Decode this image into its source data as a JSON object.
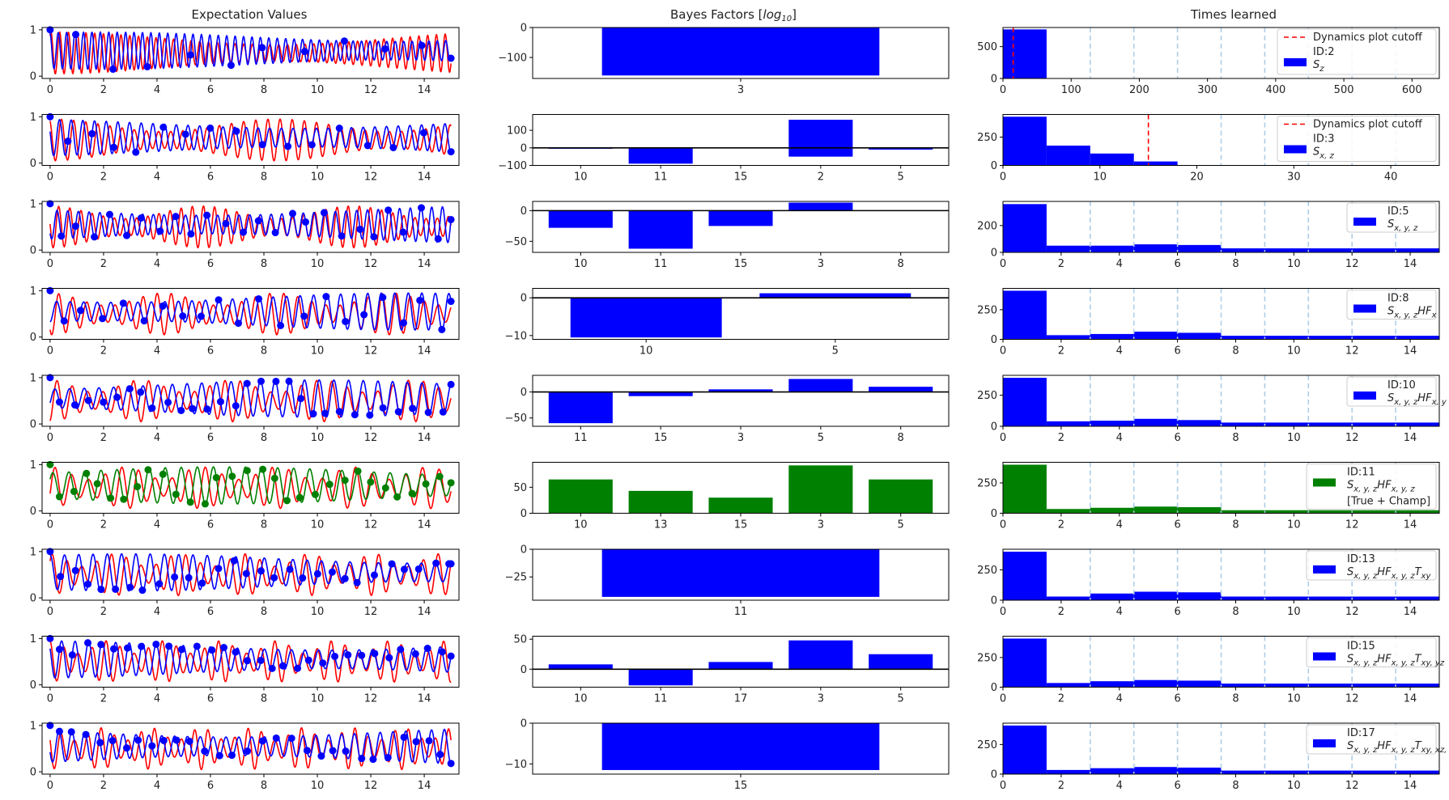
{
  "colors": {
    "sim": "#ff0000",
    "model": "#0000ff",
    "champ": "#008000",
    "cutoff": "#ff0000",
    "epoch": "#aecde8",
    "axis": "#000000"
  },
  "columns": {
    "expectation": {
      "title": "Expectation Values"
    },
    "bayes": {
      "title": "Bayes Factors [",
      "title_math": "log",
      "title_sub": "10",
      "title_end": "]"
    },
    "times": {
      "title": "Times learned"
    }
  },
  "chart_data": [
    {
      "row": 0,
      "model_id": "2",
      "model_label": "S",
      "model_sub": "z",
      "champion": false,
      "cutoff": 15,
      "expectation": {
        "type": "line",
        "xlim": [
          -0.3,
          15.3
        ],
        "ylim": [
          -0.05,
          1.05
        ],
        "xticks": [
          0,
          2,
          4,
          6,
          8,
          10,
          12,
          14
        ],
        "yticks": [
          0,
          1
        ],
        "freq": 3.05,
        "marker_step": 1.37,
        "seed": 1
      },
      "bayes": {
        "type": "bar",
        "categories": [
          "3"
        ],
        "values": [
          -160
        ],
        "ylim": [
          -170,
          0
        ],
        "yticks": [
          -100,
          0
        ],
        "yticklabels": [
          "−100",
          "0"
        ],
        "zero_line": false
      },
      "times": {
        "type": "bar",
        "bin_edges": [
          0,
          64
        ],
        "counts": [
          770
        ],
        "ylim": [
          0,
          800
        ],
        "xlim": [
          0,
          640
        ],
        "xticks": [
          0,
          100,
          200,
          300,
          400,
          500,
          600
        ],
        "yticks": [
          0,
          500
        ],
        "epoch_lines": [
          128,
          192,
          256,
          320,
          384,
          448,
          512,
          576
        ],
        "legend": {
          "cutoff": "Dynamics plot cutoff",
          "id": "ID:2",
          "extra": ""
        }
      }
    },
    {
      "row": 1,
      "model_id": "3",
      "model_label": "S",
      "model_sub": "x, z",
      "champion": false,
      "cutoff": 15,
      "expectation": {
        "type": "line",
        "xlim": [
          -0.3,
          15.3
        ],
        "ylim": [
          -0.05,
          1.05
        ],
        "xticks": [
          0,
          2,
          4,
          6,
          8,
          10,
          12,
          14
        ],
        "yticks": [
          0,
          1
        ],
        "freq": 2.2,
        "marker_step": 0.95,
        "seed": 2
      },
      "bayes": {
        "type": "bar",
        "categories": [
          "10",
          "11",
          "15",
          "2",
          "5"
        ],
        "values": [
          -5,
          -90,
          -3,
          160,
          -10
        ],
        "bar_base": [
          0,
          0,
          0,
          -50,
          0
        ],
        "ylim": [
          -100,
          190
        ],
        "yticks": [
          -100,
          0,
          100
        ],
        "yticklabels": [
          "−100",
          "0",
          "100"
        ],
        "zero_line": true
      },
      "times": {
        "type": "bar",
        "bin_edges": [
          0,
          4.5,
          9,
          13.5,
          18
        ],
        "counts": [
          430,
          175,
          105,
          35
        ],
        "ylim": [
          0,
          450
        ],
        "xlim": [
          0,
          45
        ],
        "xticks": [
          0,
          10,
          20,
          30,
          40
        ],
        "yticks": [
          0,
          250
        ],
        "epoch_lines": [
          22.5,
          27,
          31.5,
          36,
          40.5
        ],
        "legend": {
          "cutoff": "Dynamics plot cutoff",
          "id": "ID:3",
          "extra": ""
        }
      }
    },
    {
      "row": 2,
      "model_id": "5",
      "model_label": "S",
      "model_sub": "x, y, z",
      "champion": false,
      "cutoff": null,
      "expectation": {
        "type": "line",
        "xlim": [
          -0.3,
          15.3
        ],
        "ylim": [
          -0.05,
          1.05
        ],
        "xticks": [
          0,
          2,
          4,
          6,
          8,
          10,
          12,
          14
        ],
        "yticks": [
          0,
          1
        ],
        "freq": 2.4,
        "marker_step": 0.6,
        "seed": 3
      },
      "bayes": {
        "type": "bar",
        "categories": [
          "10",
          "11",
          "15",
          "3",
          "8"
        ],
        "values": [
          -28,
          -62,
          -25,
          13,
          0
        ],
        "ylim": [
          -68,
          15
        ],
        "yticks": [
          -50,
          0
        ],
        "yticklabels": [
          "−50",
          "0"
        ],
        "zero_line": true
      },
      "times": {
        "type": "bar",
        "bin_edges": [
          0,
          1.5,
          3,
          4.5,
          6,
          7.5,
          9,
          10.5,
          12,
          13.5,
          15
        ],
        "counts": [
          360,
          50,
          50,
          60,
          55,
          30,
          30,
          30,
          30,
          30
        ],
        "ylim": [
          0,
          380
        ],
        "xlim": [
          0,
          15
        ],
        "xticks": [
          0,
          2,
          4,
          6,
          8,
          10,
          12,
          14
        ],
        "yticks": [
          0,
          200
        ],
        "epoch_lines": [
          3,
          4.5,
          6,
          7.5,
          9,
          10.5,
          12,
          13.5
        ],
        "legend": {
          "cutoff": "",
          "id": "ID:5",
          "extra": ""
        }
      }
    },
    {
      "row": 3,
      "model_id": "8",
      "model_label": "S",
      "model_sub": "x, y, z",
      "model_tail": "HF",
      "model_tail_sub": "x",
      "champion": false,
      "cutoff": null,
      "expectation": {
        "type": "line",
        "xlim": [
          -0.3,
          15.3
        ],
        "ylim": [
          -0.05,
          1.05
        ],
        "xticks": [
          0,
          2,
          4,
          6,
          8,
          10,
          12,
          14
        ],
        "yticks": [
          0,
          1
        ],
        "freq": 1.9,
        "marker_step": 0.75,
        "seed": 4
      },
      "bayes": {
        "type": "bar",
        "categories": [
          "10",
          "5"
        ],
        "values": [
          -10.5,
          1.2
        ],
        "ylim": [
          -11,
          2.5
        ],
        "yticks": [
          -10,
          0
        ],
        "yticklabels": [
          "−10",
          "0"
        ],
        "zero_line": true
      },
      "times": {
        "type": "bar",
        "bin_edges": [
          0,
          1.5,
          3,
          4.5,
          6,
          7.5,
          9,
          10.5,
          12,
          13.5,
          15
        ],
        "counts": [
          410,
          35,
          45,
          65,
          55,
          30,
          30,
          30,
          30,
          30
        ],
        "ylim": [
          0,
          430
        ],
        "xlim": [
          0,
          15
        ],
        "xticks": [
          0,
          2,
          4,
          6,
          8,
          10,
          12,
          14
        ],
        "yticks": [
          0,
          250
        ],
        "epoch_lines": [
          3,
          4.5,
          6,
          7.5,
          9,
          10.5,
          12,
          13.5
        ],
        "legend": {
          "cutoff": "",
          "id": "ID:8",
          "extra": ""
        }
      }
    },
    {
      "row": 4,
      "model_id": "10",
      "model_label": "S",
      "model_sub": "x, y, z",
      "model_tail": "HF",
      "model_tail_sub": "x, y",
      "champion": false,
      "cutoff": null,
      "expectation": {
        "type": "line",
        "xlim": [
          -0.3,
          15.3
        ],
        "ylim": [
          -0.05,
          1.05
        ],
        "xticks": [
          0,
          2,
          4,
          6,
          8,
          10,
          12,
          14
        ],
        "yticks": [
          0,
          1
        ],
        "freq": 1.75,
        "marker_step": 0.5,
        "seed": 5
      },
      "bayes": {
        "type": "bar",
        "categories": [
          "11",
          "15",
          "3",
          "5",
          "8"
        ],
        "values": [
          -60,
          -8,
          5,
          25,
          10
        ],
        "ylim": [
          -66,
          32
        ],
        "yticks": [
          -50,
          0
        ],
        "yticklabels": [
          "−50",
          "0"
        ],
        "zero_line": true
      },
      "times": {
        "type": "bar",
        "bin_edges": [
          0,
          1.5,
          3,
          4.5,
          6,
          7.5,
          9,
          10.5,
          12,
          13.5,
          15
        ],
        "counts": [
          390,
          40,
          45,
          60,
          50,
          30,
          30,
          30,
          30,
          30
        ],
        "ylim": [
          0,
          410
        ],
        "xlim": [
          0,
          15
        ],
        "xticks": [
          0,
          2,
          4,
          6,
          8,
          10,
          12,
          14
        ],
        "yticks": [
          0,
          250
        ],
        "epoch_lines": [
          3,
          4.5,
          6,
          7.5,
          9,
          10.5,
          12,
          13.5
        ],
        "legend": {
          "cutoff": "",
          "id": "ID:10",
          "extra": ""
        }
      }
    },
    {
      "row": 5,
      "model_id": "11",
      "model_label": "S",
      "model_sub": "x, y, z",
      "model_tail": "HF",
      "model_tail_sub": "x, y, z",
      "champion": true,
      "cutoff": null,
      "expectation": {
        "type": "line",
        "xlim": [
          -0.3,
          15.3
        ],
        "ylim": [
          -0.05,
          1.05
        ],
        "xticks": [
          0,
          2,
          4,
          6,
          8,
          10,
          12,
          14
        ],
        "yticks": [
          0,
          1
        ],
        "freq": 1.6,
        "marker_step": 0.5,
        "seed": 6
      },
      "bayes": {
        "type": "bar",
        "categories": [
          "10",
          "13",
          "15",
          "3",
          "5"
        ],
        "values": [
          65,
          43,
          30,
          92,
          65
        ],
        "ylim": [
          0,
          98
        ],
        "yticks": [
          0,
          50
        ],
        "yticklabels": [
          "0",
          "50"
        ],
        "zero_line": false
      },
      "times": {
        "type": "bar",
        "bin_edges": [
          0,
          1.5,
          3,
          4.5,
          6,
          7.5,
          9,
          10.5,
          12,
          13.5,
          15
        ],
        "counts": [
          400,
          35,
          45,
          55,
          50,
          25,
          25,
          25,
          25,
          25
        ],
        "ylim": [
          0,
          420
        ],
        "xlim": [
          0,
          15
        ],
        "xticks": [
          0,
          2,
          4,
          6,
          8,
          10,
          12,
          14
        ],
        "yticks": [
          0,
          250
        ],
        "epoch_lines": [
          3,
          4.5,
          6,
          7.5,
          9,
          10.5,
          12,
          13.5
        ],
        "legend": {
          "cutoff": "",
          "id": "ID:11",
          "extra": "[True + Champ]"
        }
      }
    },
    {
      "row": 6,
      "model_id": "13",
      "model_label": "S",
      "model_sub": "x, y, z",
      "model_tail": "HF",
      "model_tail_sub": "x, y, z",
      "model_tail2": "T",
      "model_tail2_sub": "xy",
      "champion": false,
      "cutoff": null,
      "expectation": {
        "type": "line",
        "xlim": [
          -0.3,
          15.3
        ],
        "ylim": [
          -0.05,
          1.05
        ],
        "xticks": [
          0,
          2,
          4,
          6,
          8,
          10,
          12,
          14
        ],
        "yticks": [
          0,
          1
        ],
        "freq": 1.8,
        "marker_step": 0.55,
        "seed": 7
      },
      "bayes": {
        "type": "bar",
        "categories": [
          "11"
        ],
        "values": [
          -43
        ],
        "ylim": [
          -46,
          0
        ],
        "yticks": [
          -25,
          0
        ],
        "yticklabels": [
          "−25",
          "0"
        ],
        "zero_line": false
      },
      "times": {
        "type": "bar",
        "bin_edges": [
          0,
          1.5,
          3,
          4.5,
          6,
          7.5,
          9,
          10.5,
          12,
          13.5,
          15
        ],
        "counts": [
          400,
          30,
          55,
          70,
          65,
          30,
          30,
          30,
          30,
          30
        ],
        "ylim": [
          0,
          420
        ],
        "xlim": [
          0,
          15
        ],
        "xticks": [
          0,
          2,
          4,
          6,
          8,
          10,
          12,
          14
        ],
        "yticks": [
          0,
          250
        ],
        "epoch_lines": [
          3,
          4.5,
          6,
          7.5,
          9,
          10.5,
          12,
          13.5
        ],
        "legend": {
          "cutoff": "",
          "id": "ID:13",
          "extra": ""
        }
      }
    },
    {
      "row": 7,
      "model_id": "15",
      "model_label": "S",
      "model_sub": "x, y, z",
      "model_tail": "HF",
      "model_tail_sub": "x, y, z",
      "model_tail2": "T",
      "model_tail2_sub": "xy, yz",
      "champion": false,
      "cutoff": null,
      "expectation": {
        "type": "line",
        "xlim": [
          -0.3,
          15.3
        ],
        "ylim": [
          -0.05,
          1.05
        ],
        "xticks": [
          0,
          2,
          4,
          6,
          8,
          10,
          12,
          14
        ],
        "yticks": [
          0,
          1
        ],
        "freq": 1.9,
        "marker_step": 0.5,
        "seed": 8
      },
      "bayes": {
        "type": "bar",
        "categories": [
          "10",
          "11",
          "17",
          "3",
          "5"
        ],
        "values": [
          8,
          -27,
          12,
          48,
          25
        ],
        "ylim": [
          -30,
          55
        ],
        "yticks": [
          0,
          50
        ],
        "yticklabels": [
          "0",
          "50"
        ],
        "zero_line": true
      },
      "times": {
        "type": "bar",
        "bin_edges": [
          0,
          1.5,
          3,
          4.5,
          6,
          7.5,
          9,
          10.5,
          12,
          13.5,
          15
        ],
        "counts": [
          410,
          35,
          50,
          60,
          55,
          30,
          30,
          30,
          30,
          30
        ],
        "ylim": [
          0,
          430
        ],
        "xlim": [
          0,
          15
        ],
        "xticks": [
          0,
          2,
          4,
          6,
          8,
          10,
          12,
          14
        ],
        "yticks": [
          0,
          250
        ],
        "epoch_lines": [
          3,
          4.5,
          6,
          7.5,
          9,
          10.5,
          12,
          13.5
        ],
        "legend": {
          "cutoff": "",
          "id": "ID:15",
          "extra": ""
        }
      }
    },
    {
      "row": 8,
      "model_id": "17",
      "model_label": "S",
      "model_sub": "x, y, z",
      "model_tail": "HF",
      "model_tail_sub": "x, y, z",
      "model_tail2": "T",
      "model_tail2_sub": "xy, xz, yz",
      "champion": false,
      "cutoff": null,
      "expectation": {
        "type": "line",
        "xlim": [
          -0.3,
          15.3
        ],
        "ylim": [
          -0.05,
          1.05
        ],
        "xticks": [
          0,
          2,
          4,
          6,
          8,
          10,
          12,
          14
        ],
        "yticks": [
          0,
          1
        ],
        "freq": 2.0,
        "marker_step": 0.5,
        "seed": 9
      },
      "bayes": {
        "type": "bar",
        "categories": [
          "15"
        ],
        "values": [
          -11.5
        ],
        "ylim": [
          -12.5,
          0
        ],
        "yticks": [
          -10,
          0
        ],
        "yticklabels": [
          "−10",
          "0"
        ],
        "zero_line": false
      },
      "times": {
        "type": "bar",
        "bin_edges": [
          0,
          1.5,
          3,
          4.5,
          6,
          7.5,
          9,
          10.5,
          12,
          13.5,
          15
        ],
        "counts": [
          410,
          35,
          50,
          60,
          55,
          30,
          30,
          30,
          30,
          30
        ],
        "ylim": [
          0,
          430
        ],
        "xlim": [
          0,
          15
        ],
        "xticks": [
          0,
          2,
          4,
          6,
          8,
          10,
          12,
          14
        ],
        "yticks": [
          0,
          250
        ],
        "epoch_lines": [
          3,
          4.5,
          6,
          7.5,
          9,
          10.5,
          12,
          13.5
        ],
        "legend": {
          "cutoff": "",
          "id": "ID:17",
          "extra": ""
        }
      }
    }
  ]
}
